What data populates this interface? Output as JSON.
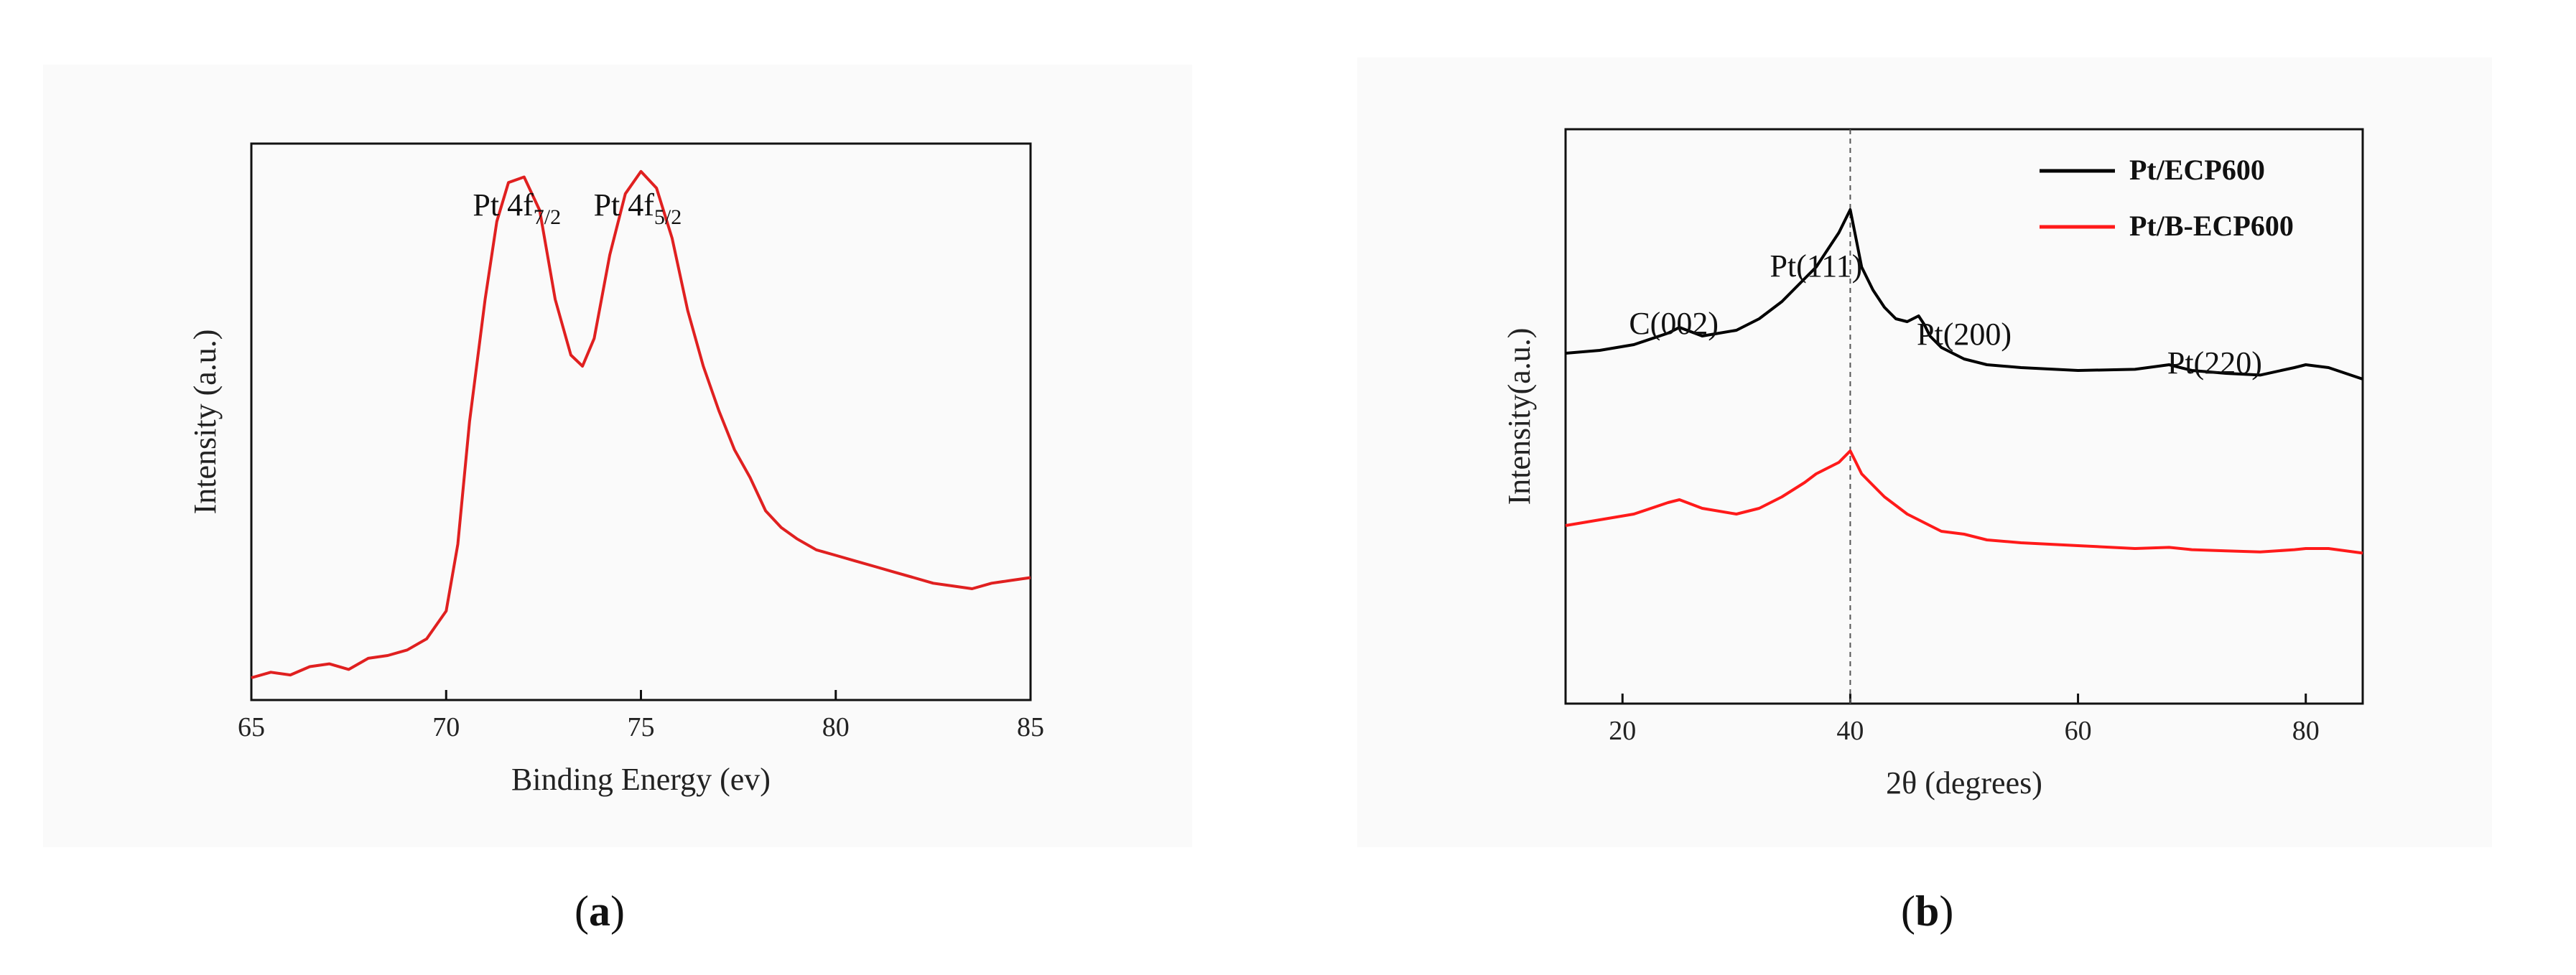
{
  "captions": {
    "a": "a",
    "b": "b"
  },
  "chart_data": [
    {
      "type": "line",
      "panel": "a",
      "title": "",
      "xlabel": "Binding Energy (ev)",
      "ylabel": "Intensity (a.u.)",
      "xlim": [
        65,
        85
      ],
      "xticks": [
        65,
        70,
        75,
        80,
        85
      ],
      "ylim": [
        0,
        1
      ],
      "yticks_shown": false,
      "grid": false,
      "annotations": [
        {
          "base": "Pt 4f",
          "sub": "7/2",
          "x": 72.0
        },
        {
          "base": "Pt 4f",
          "sub": "5/2",
          "x": 75.1
        }
      ],
      "series": [
        {
          "color": "#e02020",
          "x": [
            65,
            65.5,
            66,
            66.5,
            67,
            67.5,
            68,
            68.5,
            69,
            69.5,
            70,
            70.3,
            70.6,
            71,
            71.3,
            71.6,
            72,
            72.4,
            72.8,
            73.2,
            73.5,
            73.8,
            74.2,
            74.6,
            75,
            75.4,
            75.8,
            76.2,
            76.6,
            77,
            77.4,
            77.8,
            78.2,
            78.6,
            79,
            79.5,
            80,
            80.5,
            81,
            81.5,
            82,
            82.5,
            83,
            83.5,
            84,
            84.5,
            85
          ],
          "y": [
            0.04,
            0.05,
            0.045,
            0.06,
            0.065,
            0.055,
            0.075,
            0.08,
            0.09,
            0.11,
            0.16,
            0.28,
            0.5,
            0.72,
            0.86,
            0.93,
            0.94,
            0.88,
            0.72,
            0.62,
            0.6,
            0.65,
            0.8,
            0.91,
            0.95,
            0.92,
            0.83,
            0.7,
            0.6,
            0.52,
            0.45,
            0.4,
            0.34,
            0.31,
            0.29,
            0.27,
            0.26,
            0.25,
            0.24,
            0.23,
            0.22,
            0.21,
            0.205,
            0.2,
            0.21,
            0.215,
            0.22
          ]
        }
      ]
    },
    {
      "type": "line",
      "panel": "b",
      "title": "",
      "xlabel": "2θ (degrees)",
      "ylabel": "Intensity(a.u.)",
      "xlim": [
        15,
        85
      ],
      "xticks": [
        20,
        40,
        60,
        80
      ],
      "ylim": [
        0,
        1
      ],
      "yticks_shown": false,
      "grid": false,
      "legend_position": "top-right",
      "reference_line_x": 40,
      "annotations": [
        {
          "text": "C(002)",
          "x": 24.5
        },
        {
          "text": "Pt(111)",
          "x": 37
        },
        {
          "text": "Pt(200)",
          "x": 50
        },
        {
          "text": "Pt(220)",
          "x": 72
        }
      ],
      "series": [
        {
          "name": "Pt/ECP600",
          "color": "#000000",
          "x": [
            15,
            18,
            21,
            24,
            25,
            27,
            30,
            32,
            34,
            36,
            37,
            38,
            39,
            39.5,
            40,
            40.5,
            41,
            42,
            43,
            44,
            45,
            46,
            46.5,
            47,
            48,
            50,
            52,
            55,
            60,
            65,
            68,
            70,
            73,
            76,
            79,
            80,
            82,
            85
          ],
          "y": [
            0.61,
            0.615,
            0.625,
            0.645,
            0.655,
            0.64,
            0.65,
            0.67,
            0.7,
            0.74,
            0.76,
            0.79,
            0.82,
            0.84,
            0.86,
            0.81,
            0.76,
            0.72,
            0.69,
            0.67,
            0.665,
            0.675,
            0.66,
            0.64,
            0.62,
            0.6,
            0.59,
            0.585,
            0.58,
            0.582,
            0.59,
            0.58,
            0.575,
            0.572,
            0.585,
            0.59,
            0.585,
            0.565
          ]
        },
        {
          "name": "Pt/B-ECP600",
          "color": "#ff1a1a",
          "x": [
            15,
            18,
            21,
            24,
            25,
            27,
            30,
            32,
            34,
            36,
            37,
            38,
            39,
            39.5,
            40,
            40.5,
            41,
            42,
            43,
            44,
            45,
            46,
            47,
            48,
            50,
            52,
            55,
            60,
            65,
            68,
            70,
            73,
            76,
            79,
            80,
            82,
            85
          ],
          "y": [
            0.31,
            0.32,
            0.33,
            0.35,
            0.355,
            0.34,
            0.33,
            0.34,
            0.36,
            0.385,
            0.4,
            0.41,
            0.42,
            0.43,
            0.44,
            0.42,
            0.4,
            0.38,
            0.36,
            0.345,
            0.33,
            0.32,
            0.31,
            0.3,
            0.295,
            0.285,
            0.28,
            0.275,
            0.27,
            0.272,
            0.268,
            0.266,
            0.264,
            0.268,
            0.27,
            0.27,
            0.262
          ]
        }
      ]
    }
  ]
}
